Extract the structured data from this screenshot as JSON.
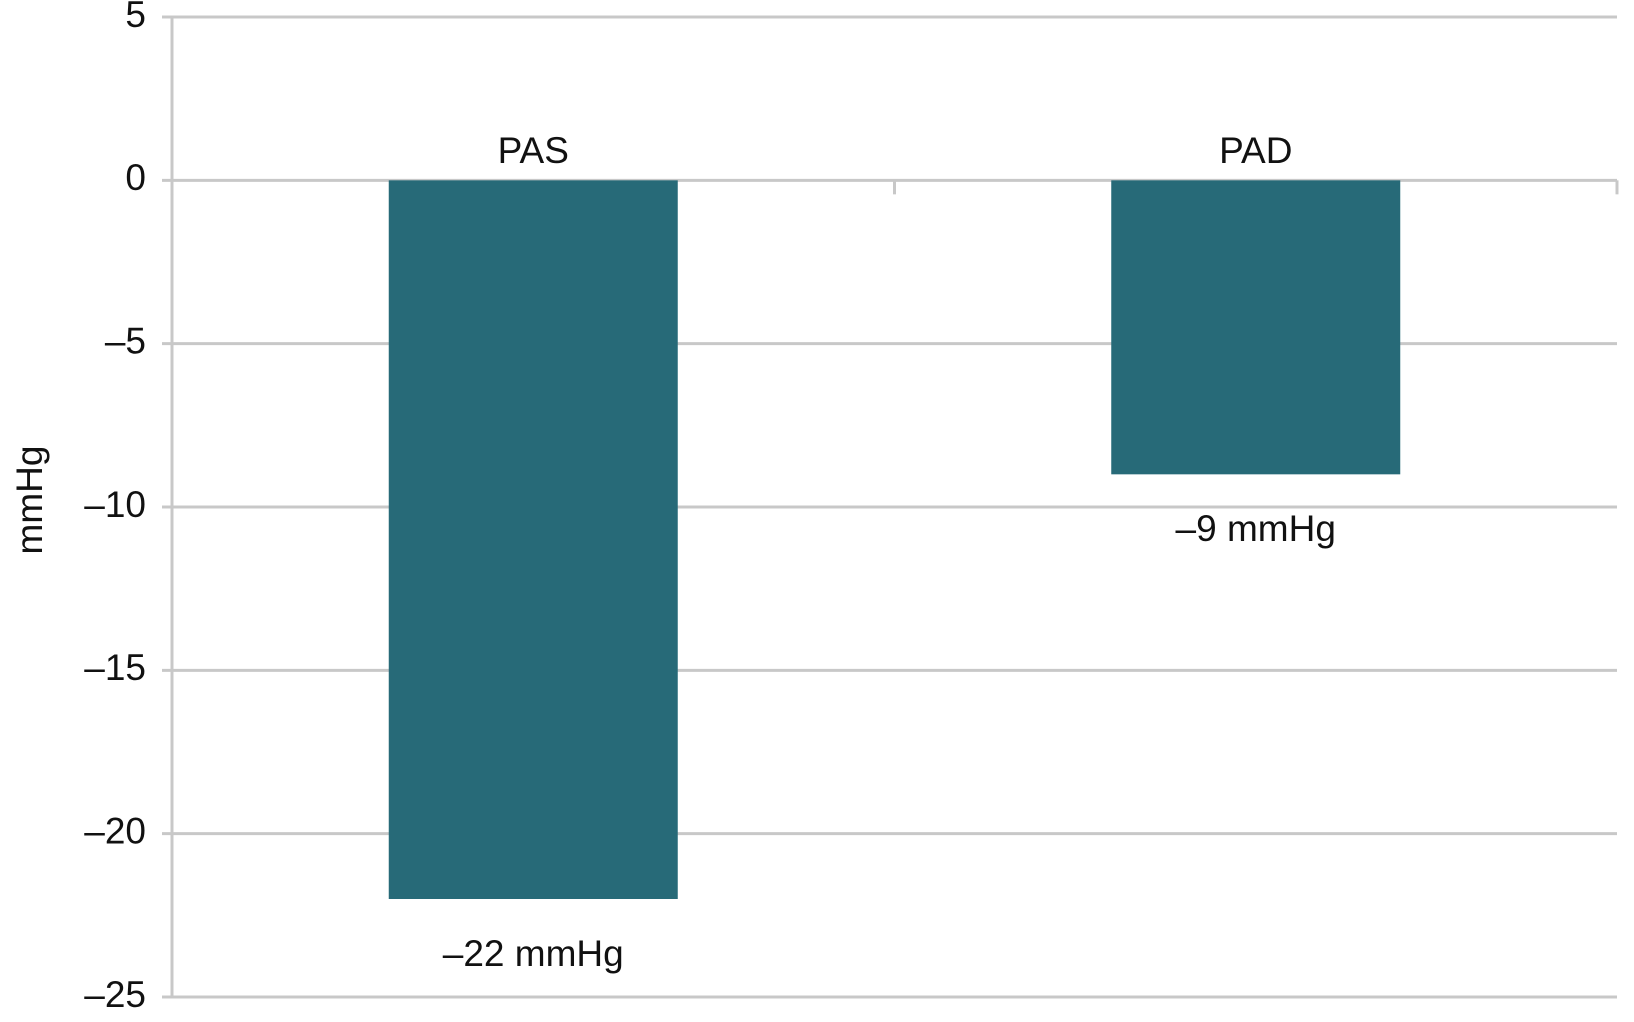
{
  "chart_data": {
    "type": "bar",
    "y_label": "mmHg",
    "categories": [
      "PAS",
      "PAD"
    ],
    "values": [
      -22,
      -9
    ],
    "value_labels": [
      "–22 mmHg",
      "–9 mmHg"
    ],
    "color": "#276a78",
    "ylim": [
      -25,
      5
    ],
    "yticks": [
      5,
      0,
      {
        "value": -5,
        "label": "–5"
      },
      {
        "value": -10,
        "label": "–10"
      },
      {
        "value": -15,
        "label": "–15"
      },
      {
        "value": -20,
        "label": "–20"
      },
      {
        "value": -25,
        "label": "–25"
      }
    ],
    "grid": true
  }
}
